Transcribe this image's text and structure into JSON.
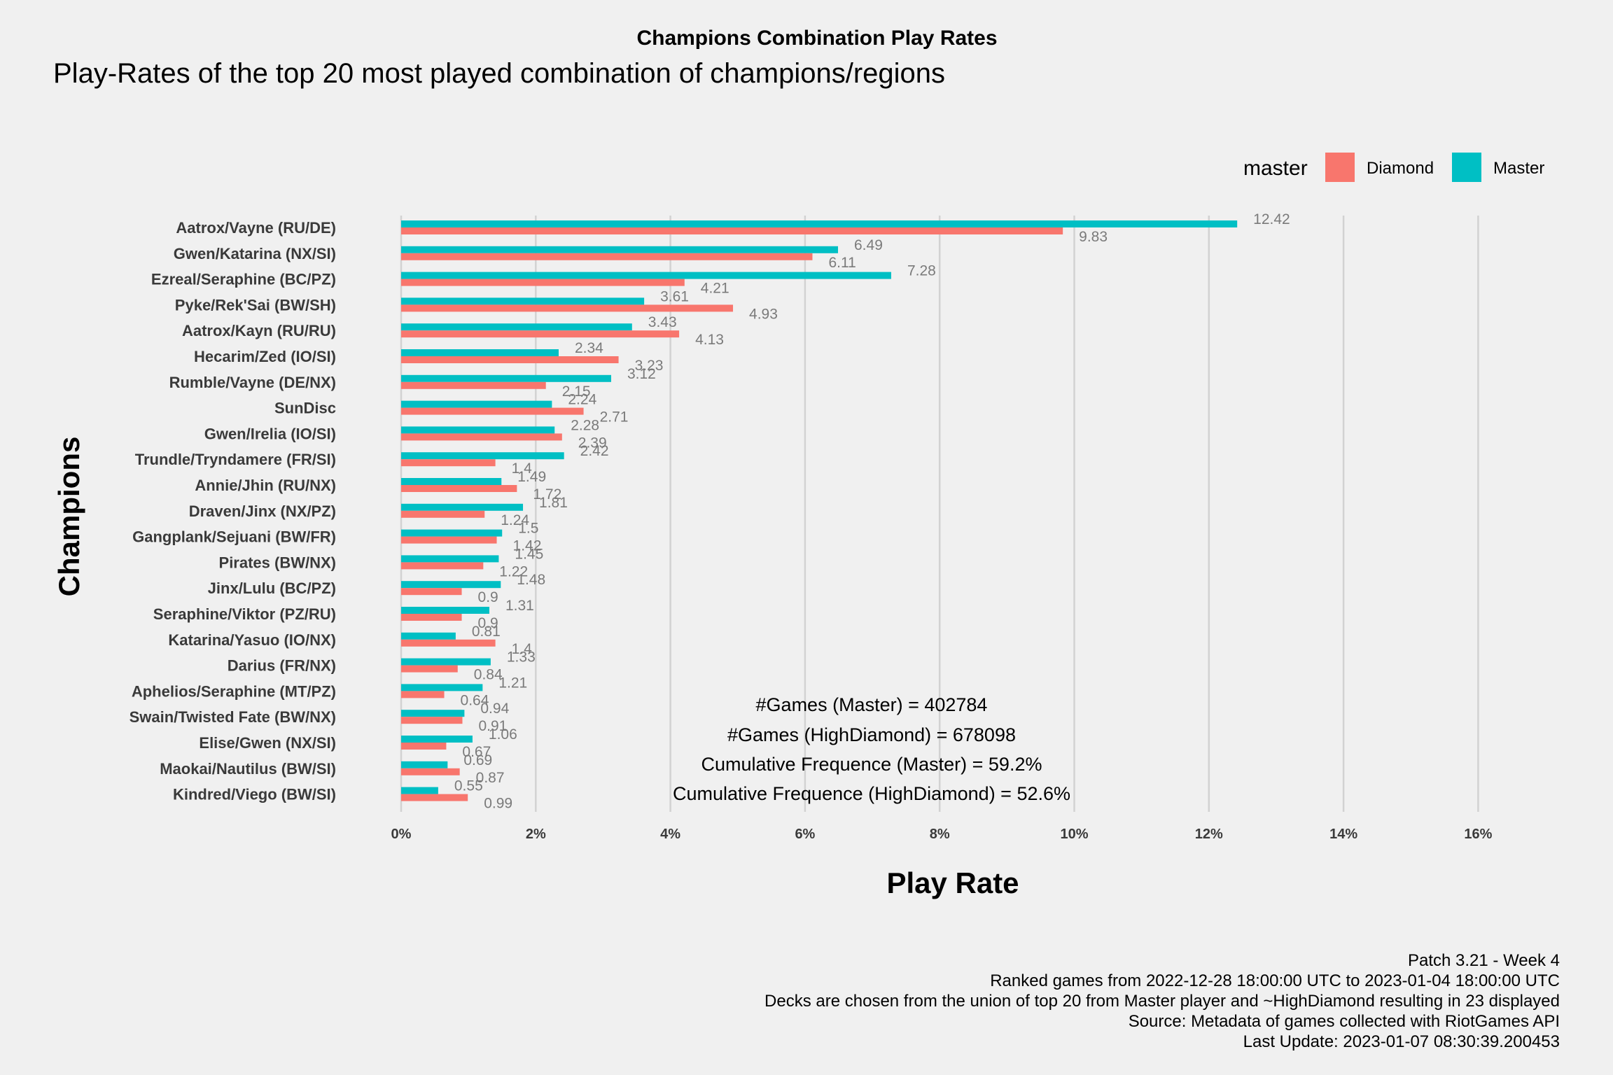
{
  "chart_data": {
    "type": "bar",
    "orientation": "horizontal",
    "title": "Champions Combination Play Rates",
    "subtitle": "Play-Rates of the top 20 most played combination of champions/regions",
    "xlabel": "Play Rate",
    "ylabel": "Champions",
    "xlim": [
      0,
      16.5
    ],
    "x_ticks": [
      "0%",
      "2%",
      "4%",
      "6%",
      "8%",
      "10%",
      "12%",
      "14%",
      "16%"
    ],
    "x_tick_values": [
      0,
      2,
      4,
      6,
      8,
      10,
      12,
      14,
      16
    ],
    "grid": "vertical major gridlines",
    "legend": {
      "title": "master",
      "position": "top-right",
      "entries": [
        {
          "label": "Diamond",
          "color": "#f8766d"
        },
        {
          "label": "Master",
          "color": "#00bfc4"
        }
      ]
    },
    "categories": [
      "Aatrox/Vayne (RU/DE)",
      "Gwen/Katarina (NX/SI)",
      "Ezreal/Seraphine (BC/PZ)",
      "Pyke/Rek'Sai (BW/SH)",
      "Aatrox/Kayn (RU/RU)",
      "Hecarim/Zed (IO/SI)",
      "Rumble/Vayne (DE/NX)",
      "SunDisc",
      "Gwen/Irelia (IO/SI)",
      "Trundle/Tryndamere (FR/SI)",
      "Annie/Jhin (RU/NX)",
      "Draven/Jinx (NX/PZ)",
      "Gangplank/Sejuani (BW/FR)",
      "Pirates (BW/NX)",
      "Jinx/Lulu (BC/PZ)",
      "Seraphine/Viktor (PZ/RU)",
      "Katarina/Yasuo (IO/NX)",
      "Darius (FR/NX)",
      "Aphelios/Seraphine (MT/PZ)",
      "Swain/Twisted Fate (BW/NX)",
      "Elise/Gwen (NX/SI)",
      "Maokai/Nautilus (BW/SI)",
      "Kindred/Viego (BW/SI)"
    ],
    "series": [
      {
        "name": "Master",
        "color": "#00bfc4",
        "values": [
          12.42,
          6.49,
          7.28,
          3.61,
          3.43,
          2.34,
          3.12,
          2.24,
          2.28,
          2.42,
          1.49,
          1.81,
          1.5,
          1.45,
          1.48,
          1.31,
          0.81,
          1.33,
          1.21,
          0.94,
          1.06,
          0.69,
          0.55
        ],
        "labels": [
          "12.42",
          "6.49",
          "7.28",
          "3.61",
          "3.43",
          "2.34",
          "3.12",
          "2.24",
          "2.28",
          "2.42",
          "1.49",
          "1.81",
          "1.5",
          "1.45",
          "1.48",
          "1.31",
          "0.81",
          "1.33",
          "1.21",
          "0.94",
          "1.06",
          "0.69",
          "0.55"
        ]
      },
      {
        "name": "Diamond",
        "color": "#f8766d",
        "values": [
          9.83,
          6.11,
          4.21,
          4.93,
          4.13,
          3.23,
          2.15,
          2.71,
          2.39,
          1.4,
          1.72,
          1.24,
          1.42,
          1.22,
          0.9,
          0.9,
          1.4,
          0.84,
          0.64,
          0.91,
          0.67,
          0.87,
          0.99
        ],
        "labels": [
          "9.83",
          "6.11",
          "4.21",
          "4.93",
          "4.13",
          "3.23",
          "2.15",
          "2.71",
          "2.39",
          "1.4",
          "1.72",
          "1.24",
          "1.42",
          "1.22",
          "0.9",
          "0.9",
          "1.4",
          "0.84",
          "0.64",
          "0.91",
          "0.67",
          "0.87",
          "0.99"
        ]
      }
    ],
    "annotations": [
      "#Games (Master) = 402784",
      "#Games (HighDiamond) = 678098",
      "Cumulative Frequence (Master) = 59.2%",
      "Cumulative Frequence (HighDiamond) = 52.6%"
    ],
    "caption": [
      "Patch 3.21 - Week 4",
      "Ranked games from 2022-12-28 18:00:00 UTC to 2023-01-04 18:00:00 UTC",
      "Decks are chosen from the union of top 20 from Master player and ~HighDiamond resulting in 23 displayed",
      "Source: Metadata of games collected with RiotGames API",
      "Last Update: 2023-01-07 08:30:39.200453"
    ]
  }
}
